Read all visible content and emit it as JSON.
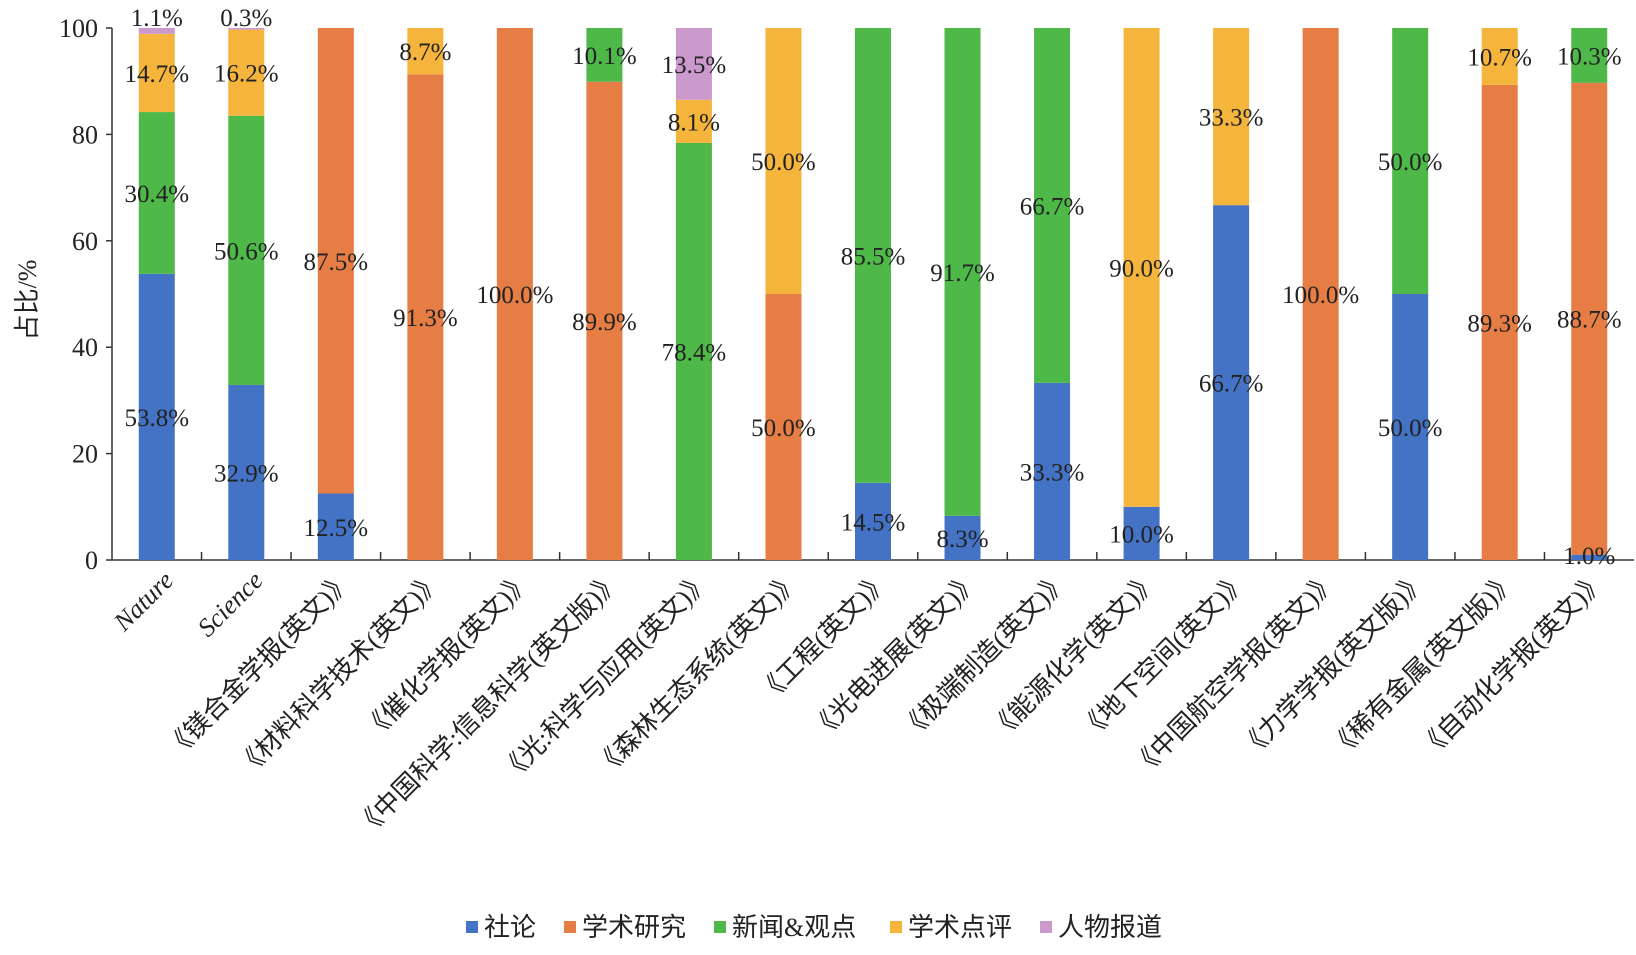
{
  "chart_data": {
    "type": "bar",
    "stacked": true,
    "title": "",
    "xlabel": "",
    "ylabel": "占比/%",
    "ylim": [
      0,
      100
    ],
    "yticks": [
      "0",
      "20",
      "40",
      "60",
      "80",
      "100"
    ],
    "grid": false,
    "legend_position": "bottom",
    "categories": [
      "Nature",
      "Science",
      "《镁合金学报(英文)》",
      "《材料科学技术(英文)》",
      "《催化学报(英文)》",
      "《中国科学:信息科学(英文版)》",
      "《光:科学与应用(英文)》",
      "《森林生态系统(英文)》",
      "《工程(英文)》",
      "《光电进展(英文)》",
      "《极端制造(英文)》",
      "《能源化学(英文)》",
      "《地下空间(英文)》",
      "《中国航空学报(英文)》",
      "《力学学报(英文版)》",
      "《稀有金属(英文版)》",
      "《自动化学报(英文)》"
    ],
    "series": [
      {
        "name": "社论",
        "color": "#4472C4",
        "values": [
          53.8,
          32.9,
          12.5,
          0,
          0,
          0,
          0,
          0,
          14.5,
          8.3,
          33.3,
          10.0,
          66.7,
          0,
          50.0,
          0,
          1.0
        ]
      },
      {
        "name": "学术研究",
        "color": "#E57D45",
        "values": [
          0,
          0,
          87.5,
          91.3,
          100.0,
          89.9,
          0,
          50.0,
          0,
          0,
          0,
          0,
          0,
          100.0,
          0,
          89.3,
          88.7
        ]
      },
      {
        "name": "新闻&观点",
        "color": "#4EB849",
        "values": [
          30.4,
          50.6,
          0,
          0,
          0,
          10.1,
          78.4,
          0,
          85.5,
          91.7,
          66.7,
          0,
          0,
          0,
          50.0,
          0,
          10.3
        ]
      },
      {
        "name": "学术点评",
        "color": "#F5B53D",
        "values": [
          14.7,
          16.2,
          0,
          8.7,
          0,
          0,
          8.1,
          50.0,
          0,
          0,
          0,
          90.0,
          33.3,
          0,
          0,
          10.7,
          0
        ]
      },
      {
        "name": "人物报道",
        "color": "#CC99CC",
        "values": [
          1.1,
          0.3,
          0,
          0,
          0,
          0,
          13.5,
          0,
          0,
          0,
          0,
          0,
          0,
          0,
          0,
          0,
          0
        ]
      }
    ]
  }
}
